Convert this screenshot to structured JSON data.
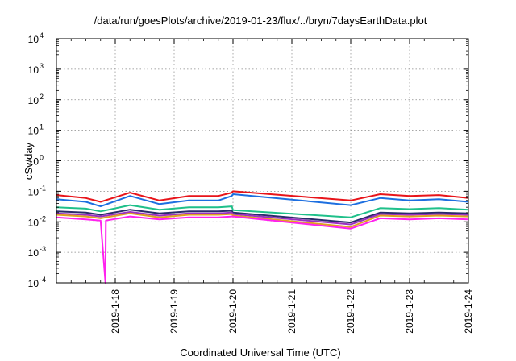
{
  "chart_data": {
    "type": "line",
    "title": "/data/run/goesPlots/archive/2019-01-23/flux/../bryn/7daysEarthData.plot",
    "xlabel": "Coordinated Universal Time (UTC)",
    "ylabel": "cSv/day",
    "x_range": [
      "2019-01-17T00:00",
      "2019-01-24T00:00"
    ],
    "x_ticks": [
      "2019-1-18",
      "2019-1-19",
      "2019-1-20",
      "2019-1-21",
      "2019-1-22",
      "2019-1-23",
      "2019-1-24"
    ],
    "y_scale": "log",
    "ylim": [
      0.0001,
      10000
    ],
    "y_ticks": [
      {
        "base": "10",
        "exp": "-4"
      },
      {
        "base": "10",
        "exp": "-3"
      },
      {
        "base": "10",
        "exp": "-2"
      },
      {
        "base": "10",
        "exp": "-1"
      },
      {
        "base": "10",
        "exp": "0"
      },
      {
        "base": "10",
        "exp": "1"
      },
      {
        "base": "10",
        "exp": "2"
      },
      {
        "base": "10",
        "exp": "3"
      },
      {
        "base": "10",
        "exp": "4"
      }
    ],
    "grid": true,
    "series": [
      {
        "color": "#e8141a",
        "values": [
          [
            "2019-01-17T00:00",
            0.075
          ],
          [
            "2019-01-17T12:00",
            0.06
          ],
          [
            "2019-01-17T18:00",
            0.045
          ],
          [
            "2019-01-18T06:00",
            0.09
          ],
          [
            "2019-01-18T18:00",
            0.05
          ],
          [
            "2019-01-19T06:00",
            0.07
          ],
          [
            "2019-01-19T18:00",
            0.07
          ],
          [
            "2019-01-19T23:30",
            0.09
          ],
          [
            "2019-01-20T00:00",
            0.1
          ],
          [
            "2019-01-22T00:00",
            0.05
          ],
          [
            "2019-01-22T00:00",
            0.05
          ],
          [
            "2019-01-22T12:00",
            0.08
          ],
          [
            "2019-01-23T00:00",
            0.07
          ],
          [
            "2019-01-23T12:00",
            0.075
          ],
          [
            "2019-01-24T00:00",
            0.06
          ]
        ]
      },
      {
        "color": "#1d6fe0",
        "values": [
          [
            "2019-01-17T00:00",
            0.055
          ],
          [
            "2019-01-17T12:00",
            0.045
          ],
          [
            "2019-01-17T18:00",
            0.032
          ],
          [
            "2019-01-18T06:00",
            0.07
          ],
          [
            "2019-01-18T18:00",
            0.038
          ],
          [
            "2019-01-19T06:00",
            0.05
          ],
          [
            "2019-01-19T18:00",
            0.05
          ],
          [
            "2019-01-19T23:30",
            0.07
          ],
          [
            "2019-01-20T00:00",
            0.08
          ],
          [
            "2019-01-22T00:00",
            0.035
          ],
          [
            "2019-01-22T00:00",
            0.035
          ],
          [
            "2019-01-22T12:00",
            0.06
          ],
          [
            "2019-01-23T00:00",
            0.05
          ],
          [
            "2019-01-23T12:00",
            0.055
          ],
          [
            "2019-01-24T00:00",
            0.045
          ]
        ]
      },
      {
        "color": "#1fc08a",
        "values": [
          [
            "2019-01-17T00:00",
            0.03
          ],
          [
            "2019-01-17T12:00",
            0.027
          ],
          [
            "2019-01-17T18:00",
            0.022
          ],
          [
            "2019-01-18T06:00",
            0.035
          ],
          [
            "2019-01-18T18:00",
            0.025
          ],
          [
            "2019-01-19T06:00",
            0.03
          ],
          [
            "2019-01-19T18:00",
            0.03
          ],
          [
            "2019-01-19T23:30",
            0.032
          ],
          [
            "2019-01-20T00:00",
            0.024
          ],
          [
            "2019-01-22T00:00",
            0.014
          ],
          [
            "2019-01-22T00:00",
            0.014
          ],
          [
            "2019-01-22T12:00",
            0.028
          ],
          [
            "2019-01-23T00:00",
            0.026
          ],
          [
            "2019-01-23T12:00",
            0.028
          ],
          [
            "2019-01-24T00:00",
            0.025
          ]
        ]
      },
      {
        "color": "#2a2a6a",
        "values": [
          [
            "2019-01-17T00:00",
            0.022
          ],
          [
            "2019-01-17T12:00",
            0.02
          ],
          [
            "2019-01-17T18:00",
            0.017
          ],
          [
            "2019-01-18T06:00",
            0.025
          ],
          [
            "2019-01-18T18:00",
            0.019
          ],
          [
            "2019-01-19T06:00",
            0.022
          ],
          [
            "2019-01-19T18:00",
            0.022
          ],
          [
            "2019-01-19T23:30",
            0.023
          ],
          [
            "2019-01-20T00:00",
            0.02
          ],
          [
            "2019-01-22T00:00",
            0.0095
          ],
          [
            "2019-01-22T00:00",
            0.0095
          ],
          [
            "2019-01-22T12:00",
            0.02
          ],
          [
            "2019-01-23T00:00",
            0.019
          ],
          [
            "2019-01-23T12:00",
            0.02
          ],
          [
            "2019-01-24T00:00",
            0.019
          ]
        ]
      },
      {
        "color": "#9b30c0",
        "values": [
          [
            "2019-01-17T00:00",
            0.019
          ],
          [
            "2019-01-17T12:00",
            0.017
          ],
          [
            "2019-01-17T18:00",
            0.015
          ],
          [
            "2019-01-18T06:00",
            0.021
          ],
          [
            "2019-01-18T18:00",
            0.016
          ],
          [
            "2019-01-19T06:00",
            0.019
          ],
          [
            "2019-01-19T18:00",
            0.019
          ],
          [
            "2019-01-19T23:30",
            0.02
          ],
          [
            "2019-01-20T00:00",
            0.018
          ],
          [
            "2019-01-22T00:00",
            0.0082
          ],
          [
            "2019-01-22T00:00",
            0.0082
          ],
          [
            "2019-01-22T12:00",
            0.018
          ],
          [
            "2019-01-23T00:00",
            0.017
          ],
          [
            "2019-01-23T12:00",
            0.018
          ],
          [
            "2019-01-24T00:00",
            0.017
          ]
        ]
      },
      {
        "color": "#e0a020",
        "values": [
          [
            "2019-01-17T00:00",
            0.017
          ],
          [
            "2019-01-17T12:00",
            0.015
          ],
          [
            "2019-01-17T18:00",
            0.013
          ],
          [
            "2019-01-18T06:00",
            0.019
          ],
          [
            "2019-01-18T18:00",
            0.014
          ],
          [
            "2019-01-19T06:00",
            0.017
          ],
          [
            "2019-01-19T18:00",
            0.017
          ],
          [
            "2019-01-19T23:30",
            0.018
          ],
          [
            "2019-01-20T00:00",
            0.016
          ],
          [
            "2019-01-22T00:00",
            0.0068
          ],
          [
            "2019-01-22T00:00",
            0.0068
          ],
          [
            "2019-01-22T12:00",
            0.016
          ],
          [
            "2019-01-23T00:00",
            0.015
          ],
          [
            "2019-01-23T12:00",
            0.016
          ],
          [
            "2019-01-24T00:00",
            0.015
          ]
        ]
      },
      {
        "color": "#ff22ee",
        "values": [
          [
            "2019-01-17T00:00",
            0.014
          ],
          [
            "2019-01-17T12:00",
            0.012
          ],
          [
            "2019-01-17T18:00",
            0.011
          ],
          [
            "2019-01-17T20:00",
            0.0001
          ],
          [
            "2019-01-17T20:10",
            0.011
          ],
          [
            "2019-01-18T06:00",
            0.015
          ],
          [
            "2019-01-18T18:00",
            0.012
          ],
          [
            "2019-01-19T06:00",
            0.014
          ],
          [
            "2019-01-19T18:00",
            0.014
          ],
          [
            "2019-01-19T23:30",
            0.015
          ],
          [
            "2019-01-20T00:00",
            0.015
          ],
          [
            "2019-01-22T00:00",
            0.006
          ],
          [
            "2019-01-22T00:00",
            0.006
          ],
          [
            "2019-01-22T12:00",
            0.013
          ],
          [
            "2019-01-23T00:00",
            0.012
          ],
          [
            "2019-01-23T12:00",
            0.013
          ],
          [
            "2019-01-24T00:00",
            0.012
          ]
        ]
      }
    ]
  }
}
